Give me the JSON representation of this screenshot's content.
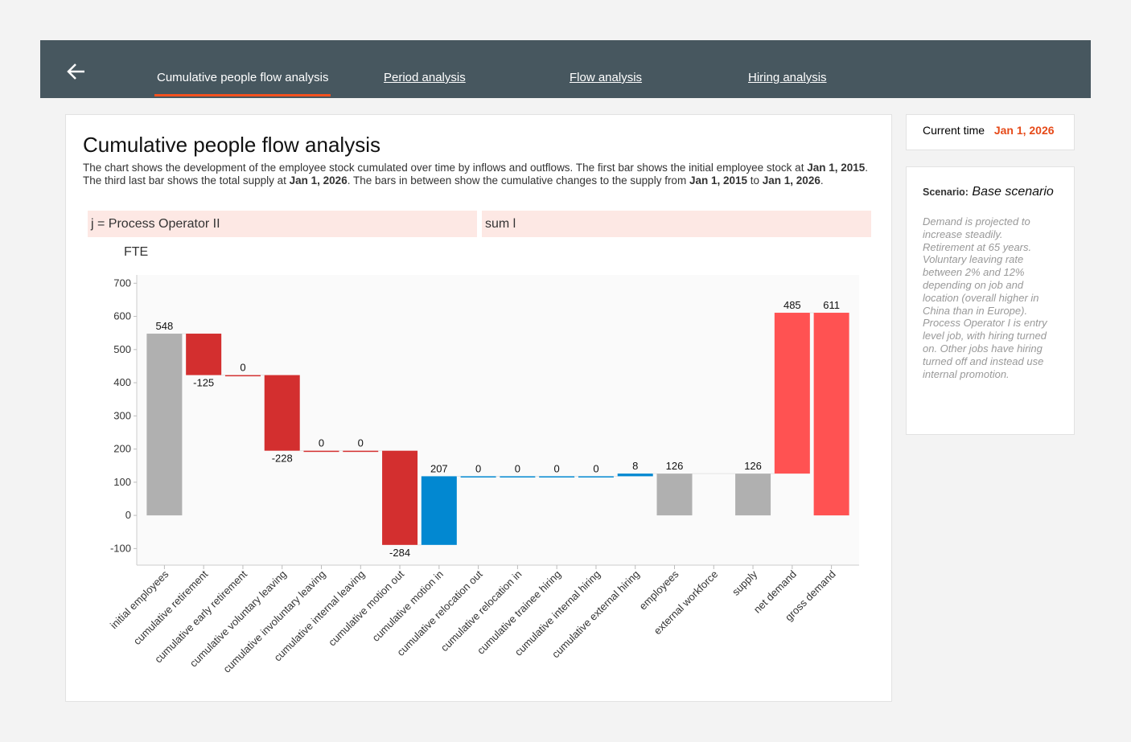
{
  "nav": {
    "tabs": [
      "Cumulative people flow analysis",
      "Period analysis",
      "Flow analysis",
      "Hiring analysis"
    ],
    "active": 0
  },
  "current_time": {
    "label": "Current time",
    "value": "Jan 1, 2026"
  },
  "scenario": {
    "label": "Scenario:",
    "name": "Base scenario",
    "note": "Demand is projected to increase steadily. Retirement at 65 years. Voluntary leaving rate between 2% and 12% depending on job and location (overall higher in China than in Europe). Process Operator I is entry level job, with hiring turned on. Other jobs have hiring turned off and instead use internal promotion."
  },
  "card": {
    "title": "Cumulative people flow analysis",
    "description": [
      [
        {
          "text": "The chart shows the development of the employee stock cumulated over time by inflows and outflows. The first bar shows the initial employee stock at ",
          "bold": false
        },
        {
          "text": "Jan 1, 2015",
          "bold": true
        },
        {
          "text": ".",
          "bold": false
        }
      ],
      [
        {
          "text": "The third last bar shows the total supply at ",
          "bold": false
        },
        {
          "text": "Jan 1, 2026",
          "bold": true
        },
        {
          "text": ". The bars in between show the cumulative changes to the supply from ",
          "bold": false
        },
        {
          "text": "Jan 1, 2015",
          "bold": true
        },
        {
          "text": " to ",
          "bold": false
        },
        {
          "text": "Jan 1, 2026",
          "bold": true
        },
        {
          "text": ".",
          "bold": false
        }
      ]
    ],
    "filters": [
      "j = Process Operator II",
      "sum l"
    ]
  },
  "chart_data": {
    "type": "waterfall",
    "ylabel": "FTE",
    "categories": [
      "initial employees",
      "cumulative retirement",
      "cumulative early retirement",
      "cumulative voluntary leaving",
      "cumulative involuntary leaving",
      "cumulative internal leaving",
      "cumulative motion out",
      "cumulative motion in",
      "cumulative relocation out",
      "cumulative relocation in",
      "cumulative trainee hiring",
      "cumulative internal hiring",
      "cumulative external hiring",
      "employees",
      "external workforce",
      "supply",
      "net demand",
      "gross demand"
    ],
    "values": [
      548,
      -125,
      0,
      -228,
      0,
      0,
      -284,
      207,
      0,
      0,
      0,
      0,
      8,
      126,
      null,
      126,
      485,
      611
    ],
    "measure": [
      "absolute",
      "relative",
      "relative",
      "relative",
      "relative",
      "relative",
      "relative",
      "relative",
      "relative",
      "relative",
      "relative",
      "relative",
      "relative",
      "absolute",
      "relative",
      "absolute",
      "relative",
      "absolute"
    ],
    "colors": [
      "#b0b0b0",
      "#d32f2f",
      "#d32f2f",
      "#d32f2f",
      "#d32f2f",
      "#d32f2f",
      "#d32f2f",
      "#0288d1",
      "#0288d1",
      "#0288d1",
      "#0288d1",
      "#0288d1",
      "#0288d1",
      "#b0b0b0",
      "#b0b0b0",
      "#b0b0b0",
      "#ff5252",
      "#ff5252"
    ],
    "ylim": [
      -150,
      725
    ],
    "yticks": [
      -100,
      0,
      100,
      200,
      300,
      400,
      500,
      600,
      700
    ]
  }
}
